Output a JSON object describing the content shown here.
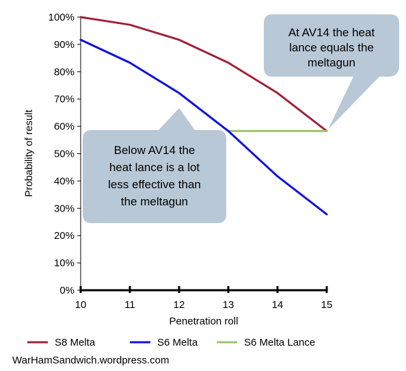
{
  "chart_data": {
    "type": "line",
    "x": [
      10,
      11,
      12,
      13,
      14,
      15
    ],
    "xlabel": "Penetration roll",
    "ylabel": "Probability of result",
    "xlim": [
      10,
      15
    ],
    "ylim": [
      0,
      100
    ],
    "y_ticks": [
      "0%",
      "10%",
      "20%",
      "30%",
      "40%",
      "50%",
      "60%",
      "70%",
      "80%",
      "90%",
      "100%"
    ],
    "x_ticks": [
      "10",
      "11",
      "12",
      "13",
      "14",
      "15"
    ],
    "grid": false,
    "legend_position": "bottom",
    "series": [
      {
        "name": "S8 Melta",
        "color": "#a0203a",
        "values": [
          100,
          97.2,
          91.7,
          83.3,
          72.2,
          58.3
        ]
      },
      {
        "name": "S6 Melta",
        "color": "#1010e0",
        "values": [
          91.7,
          83.3,
          72.2,
          58.3,
          41.7,
          27.8
        ]
      },
      {
        "name": "S6 Melta Lance",
        "color": "#9cc56a",
        "values": [
          91.7,
          83.3,
          72.2,
          58.3,
          58.3,
          58.3
        ]
      }
    ],
    "annotations": [
      {
        "lines": [
          "At AV14 the heat",
          "lance equals the",
          "meltagun"
        ]
      },
      {
        "lines": [
          "Below AV14 the",
          "heat lance is a lot",
          "less effective than",
          "the meltagun"
        ]
      }
    ]
  },
  "credit": "WarHamSandwich.wordpress.com",
  "colors": {
    "callout_fill": "#b8c8d6"
  }
}
